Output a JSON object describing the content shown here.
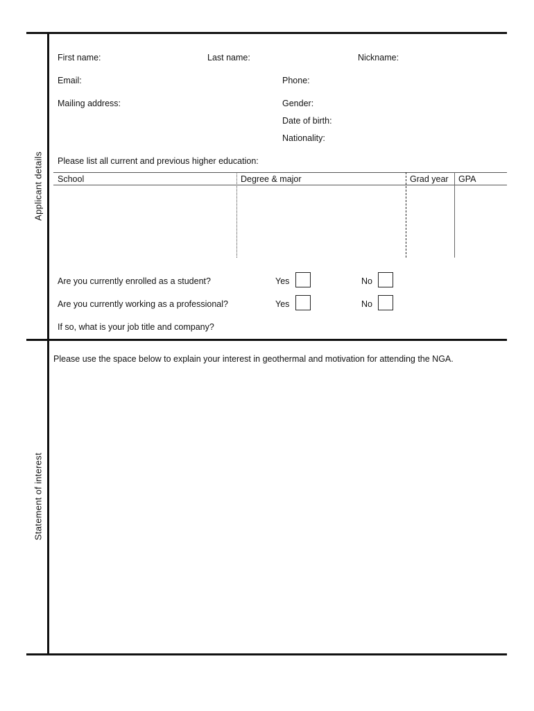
{
  "sections": {
    "applicant": {
      "label": "Applicant details",
      "fields": {
        "first_name": "First name:",
        "last_name": "Last name:",
        "nickname": "Nickname:",
        "email": "Email:",
        "phone": "Phone:",
        "mailing_address": "Mailing address:",
        "gender": "Gender:",
        "date_of_birth": "Date of birth:",
        "nationality": "Nationality:"
      },
      "education_prompt": "Please list all current and previous higher education:",
      "education_table": {
        "columns": [
          "School",
          "Degree & major",
          "Grad year",
          "GPA"
        ]
      },
      "questions": [
        {
          "text": "Are you currently enrolled as a student?",
          "yes": "Yes",
          "no": "No",
          "yes_checked": false,
          "no_checked": false
        },
        {
          "text": "Are you currently working as a professional?",
          "yes": "Yes",
          "no": "No",
          "yes_checked": false,
          "no_checked": false
        }
      ],
      "job_prompt": "If so, what is your job title and company?"
    },
    "statement": {
      "label": "Statement of interest",
      "prompt": "Please use the space below to explain your interest in geothermal and motivation for attending the NGA."
    }
  }
}
